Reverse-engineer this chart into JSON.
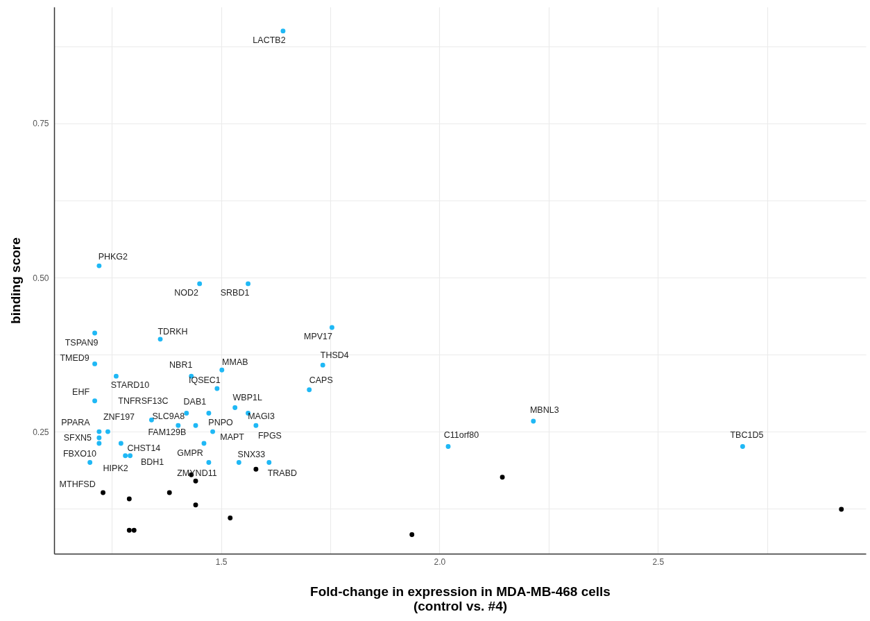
{
  "chart_data": {
    "type": "scatter",
    "xlabel": "Fold-change in expression in MDA-MB-468 cells\n(control vs. #4)",
    "ylabel": "binding score",
    "xlim": [
      1.118,
      2.976
    ],
    "ylim": [
      0.052,
      0.939
    ],
    "xticks": [
      {
        "value": 1.25,
        "label": null
      },
      {
        "value": 1.5,
        "label": "1.5"
      },
      {
        "value": 1.75,
        "label": null
      },
      {
        "value": 2.0,
        "label": "2.0"
      },
      {
        "value": 2.25,
        "label": null
      },
      {
        "value": 2.5,
        "label": "2.5"
      },
      {
        "value": 2.75,
        "label": null
      }
    ],
    "yticks": [
      {
        "value": 0.125,
        "label": null
      },
      {
        "value": 0.25,
        "label": "0.25"
      },
      {
        "value": 0.375,
        "label": null
      },
      {
        "value": 0.5,
        "label": "0.50"
      },
      {
        "value": 0.625,
        "label": null
      },
      {
        "value": 0.75,
        "label": "0.75"
      },
      {
        "value": 0.875,
        "label": null
      }
    ],
    "grid": true,
    "marker": "circle",
    "series": [
      {
        "color": "#1fb8f5",
        "x": [
          1.642,
          1.221,
          1.451,
          1.562,
          1.754,
          1.211,
          1.361,
          1.733,
          1.211,
          1.502,
          1.26,
          1.432,
          1.491,
          1.702,
          1.211,
          1.532,
          1.562,
          1.472,
          1.421,
          1.341,
          1.402,
          1.442,
          1.58,
          1.481,
          1.221,
          1.241,
          1.221,
          1.221,
          1.461,
          1.271,
          1.281,
          1.292,
          1.2,
          1.472,
          1.541,
          1.61,
          2.215,
          2.02,
          2.694
        ],
        "values": [
          0.9,
          0.519,
          0.49,
          0.49,
          0.419,
          0.41,
          0.4,
          0.358,
          0.36,
          0.35,
          0.34,
          0.34,
          0.32,
          0.318,
          0.3,
          0.289,
          0.28,
          0.28,
          0.28,
          0.269,
          0.26,
          0.26,
          0.26,
          0.25,
          0.25,
          0.25,
          0.24,
          0.231,
          0.231,
          0.231,
          0.211,
          0.211,
          0.2,
          0.2,
          0.2,
          0.2,
          0.267,
          0.226,
          0.226
        ]
      },
      {
        "color": "#000000",
        "x": [
          1.58,
          1.432,
          1.442,
          1.23,
          1.382,
          1.29,
          1.442,
          1.521,
          1.29,
          1.301,
          2.144,
          1.937,
          2.92
        ],
        "values": [
          0.189,
          0.18,
          0.17,
          0.151,
          0.151,
          0.141,
          0.131,
          0.11,
          0.09,
          0.09,
          0.176,
          0.083,
          0.124
        ]
      }
    ],
    "annotations": [
      {
        "text": "LACTB2",
        "x": 1.642,
        "y": 0.9
      },
      {
        "text": "PHKG2",
        "x": 1.221,
        "y": 0.519
      },
      {
        "text": "NOD2",
        "x": 1.451,
        "y": 0.49
      },
      {
        "text": "SRBD1",
        "x": 1.562,
        "y": 0.49
      },
      {
        "text": "MPV17",
        "x": 1.754,
        "y": 0.419
      },
      {
        "text": "TSPAN9",
        "x": 1.211,
        "y": 0.41
      },
      {
        "text": "TDRKH",
        "x": 1.361,
        "y": 0.4
      },
      {
        "text": "THSD4",
        "x": 1.733,
        "y": 0.358
      },
      {
        "text": "TMED9",
        "x": 1.211,
        "y": 0.36
      },
      {
        "text": "MMAB",
        "x": 1.502,
        "y": 0.35
      },
      {
        "text": "STARD10",
        "x": 1.26,
        "y": 0.34
      },
      {
        "text": "NBR1",
        "x": 1.432,
        "y": 0.34
      },
      {
        "text": "IQSEC1",
        "x": 1.491,
        "y": 0.32
      },
      {
        "text": "CAPS",
        "x": 1.702,
        "y": 0.318
      },
      {
        "text": "EHF",
        "x": 1.211,
        "y": 0.3
      },
      {
        "text": "WBP1L",
        "x": 1.532,
        "y": 0.289
      },
      {
        "text": "MAGI3",
        "x": 1.562,
        "y": 0.28
      },
      {
        "text": "DAB1",
        "x": 1.472,
        "y": 0.28
      },
      {
        "text": "SLC9A8",
        "x": 1.421,
        "y": 0.28
      },
      {
        "text": "TNFRSF13C",
        "x": 1.341,
        "y": 0.269
      },
      {
        "text": "FAM129B",
        "x": 1.402,
        "y": 0.26
      },
      {
        "text": "PNPO",
        "x": 1.442,
        "y": 0.26
      },
      {
        "text": "FPGS",
        "x": 1.58,
        "y": 0.26
      },
      {
        "text": "MAPT",
        "x": 1.481,
        "y": 0.25
      },
      {
        "text": "PPARA",
        "x": 1.221,
        "y": 0.25
      },
      {
        "text": "ZNF197",
        "x": 1.241,
        "y": 0.25
      },
      {
        "text": "SFXN5",
        "x": 1.221,
        "y": 0.24
      },
      {
        "text": "FBXO10",
        "x": 1.221,
        "y": 0.231
      },
      {
        "text": "GMPR",
        "x": 1.461,
        "y": 0.231
      },
      {
        "text": "CHST14",
        "x": 1.271,
        "y": 0.231
      },
      {
        "text": "HIPK2",
        "x": 1.281,
        "y": 0.211
      },
      {
        "text": "BDH1",
        "x": 1.292,
        "y": 0.211
      },
      {
        "text": "MTHFSD",
        "x": 1.2,
        "y": 0.2
      },
      {
        "text": "ZMYND11",
        "x": 1.472,
        "y": 0.2
      },
      {
        "text": "SNX33",
        "x": 1.541,
        "y": 0.2
      },
      {
        "text": "TRABD",
        "x": 1.61,
        "y": 0.2
      },
      {
        "text": "MBNL3",
        "x": 2.215,
        "y": 0.267
      },
      {
        "text": "C11orf80",
        "x": 2.02,
        "y": 0.226
      },
      {
        "text": "TBC1D5",
        "x": 2.694,
        "y": 0.226
      }
    ]
  }
}
